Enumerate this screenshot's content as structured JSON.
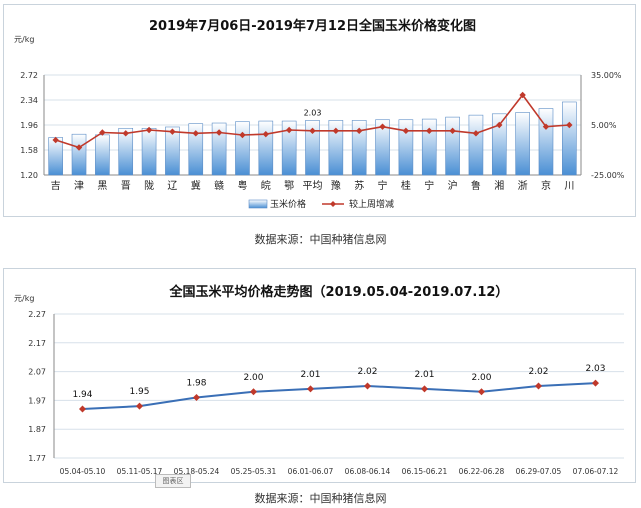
{
  "chart_data": [
    {
      "type": "bar",
      "title": "2019年7月06日-2019年7月12日全国玉米价格变化图",
      "ylabel": "元/kg",
      "y_ticks": [
        "2.72",
        "2.34",
        "1.96",
        "1.58",
        "1.20"
      ],
      "ylim": [
        1.2,
        2.72
      ],
      "y2_ticks": [
        "35.00%",
        "5.00%",
        "-25.00%"
      ],
      "y2lim": [
        -25,
        35
      ],
      "categories": [
        "吉",
        "津",
        "黑",
        "晋",
        "陇",
        "辽",
        "冀",
        "赣",
        "粤",
        "皖",
        "鄂",
        "平均",
        "豫",
        "苏",
        "宁",
        "桂",
        "宁",
        "沪",
        "鲁",
        "湘",
        "浙",
        "京",
        "川"
      ],
      "series": [
        {
          "name": "玉米价格",
          "kind": "bar",
          "values": [
            1.77,
            1.82,
            1.81,
            1.91,
            1.91,
            1.93,
            1.98,
            1.99,
            2.01,
            2.02,
            2.02,
            2.03,
            2.03,
            2.03,
            2.04,
            2.04,
            2.05,
            2.08,
            2.11,
            2.13,
            2.15,
            2.21,
            2.31
          ]
        },
        {
          "name": "较上周增减",
          "kind": "line",
          "axis": "right",
          "values": [
            -4.0,
            -8.5,
            0.5,
            0.0,
            2.0,
            1.0,
            0.0,
            0.5,
            -1.0,
            -0.5,
            2.0,
            1.5,
            1.5,
            1.5,
            4.0,
            1.5,
            1.5,
            1.5,
            0.0,
            5.0,
            23.0,
            4.0,
            5.0
          ]
        }
      ],
      "data_labels": [
        {
          "category_index": 11,
          "text": "2.03"
        }
      ],
      "legend": [
        "玉米价格",
        "较上周增减"
      ],
      "legend_position": "bottom"
    },
    {
      "type": "line",
      "title": "全国玉米平均价格走势图（2019.05.04-2019.07.12）",
      "ylabel": "元/kg",
      "y_ticks": [
        "2.27",
        "2.17",
        "2.07",
        "1.97",
        "1.87",
        "1.77"
      ],
      "ylim": [
        1.77,
        2.27
      ],
      "categories": [
        "05.04-05.10",
        "05.11-05.17",
        "05.18-05.24",
        "05.25-05.31",
        "06.01-06.07",
        "06.08-06.14",
        "06.15-06.21",
        "06.22-06.28",
        "06.29-07.05",
        "07.06-07.12"
      ],
      "series": [
        {
          "values": [
            1.94,
            1.95,
            1.98,
            2.0,
            2.01,
            2.02,
            2.01,
            2.0,
            2.02,
            2.03
          ],
          "labels": [
            "1.94",
            "1.95",
            "1.98",
            "2.00",
            "2.01",
            "2.02",
            "2.01",
            "2.00",
            "2.02",
            "2.03"
          ]
        }
      ],
      "grid": true
    }
  ],
  "colors": {
    "bar_top": "#ffffff",
    "bar_bottom": "#4a8fd4",
    "bar_edge": "#5b8dc6",
    "line": "#c0392b",
    "marker": "#c0392b",
    "line2": "#3a6fb6",
    "marker2": "#c0392b",
    "grid": "#d7e0ea",
    "axis": "#8a8a8a"
  },
  "source": "数据来源：中国种猪信息网",
  "tag": "图表区"
}
